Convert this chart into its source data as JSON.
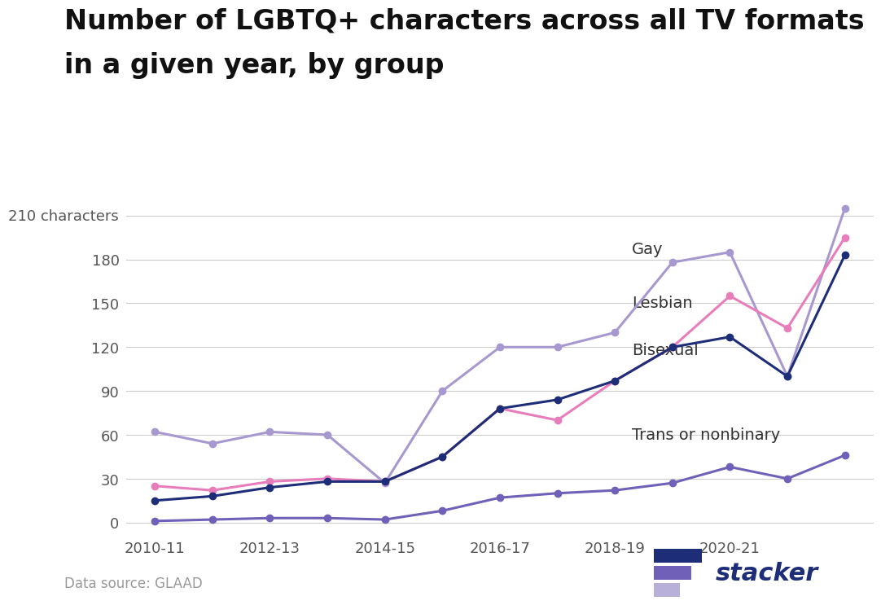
{
  "title_line1": "Number of LGBTQ+ characters across all TV formats",
  "title_line2": "in a given year, by group",
  "years": [
    2010,
    2011,
    2012,
    2013,
    2014,
    2015,
    2016,
    2017,
    2018,
    2019,
    2020,
    2021,
    2022
  ],
  "x_tick_labels": [
    "2010-11",
    "2012-13",
    "2014-15",
    "2016-17",
    "2018-19",
    "2020-21"
  ],
  "x_tick_positions": [
    0,
    2,
    4,
    6,
    8,
    10
  ],
  "gay": [
    62,
    54,
    62,
    60,
    27,
    90,
    120,
    120,
    130,
    178,
    185,
    100,
    215
  ],
  "lesbian": [
    25,
    22,
    28,
    30,
    28,
    45,
    78,
    70,
    97,
    120,
    155,
    133,
    195
  ],
  "bisexual": [
    15,
    18,
    24,
    28,
    28,
    45,
    78,
    84,
    97,
    120,
    127,
    100,
    183
  ],
  "trans_nonbinary": [
    1,
    2,
    3,
    3,
    2,
    8,
    17,
    20,
    22,
    27,
    38,
    30,
    46
  ],
  "gay_color": "#a898d0",
  "lesbian_color": "#e87dbc",
  "bisexual_color": "#1e2d78",
  "trans_color": "#7060b8",
  "yticks": [
    0,
    30,
    60,
    90,
    120,
    150,
    180,
    210
  ],
  "ylim_min": -8,
  "ylim_max": 228,
  "xlim_min": -0.5,
  "xlim_max": 12.5,
  "source_text": "Data source: GLAAD",
  "bg_color": "#ffffff",
  "grid_color": "#cccccc",
  "tick_color": "#555555",
  "label_fontsize": 14,
  "tick_fontsize": 13,
  "title_fontsize": 24,
  "lw": 2.2,
  "ms": 6,
  "logo_bar_colors": [
    "#1e2d78",
    "#7060b8",
    "#b8b0d8"
  ],
  "logo_text_color": "#1e2d78"
}
